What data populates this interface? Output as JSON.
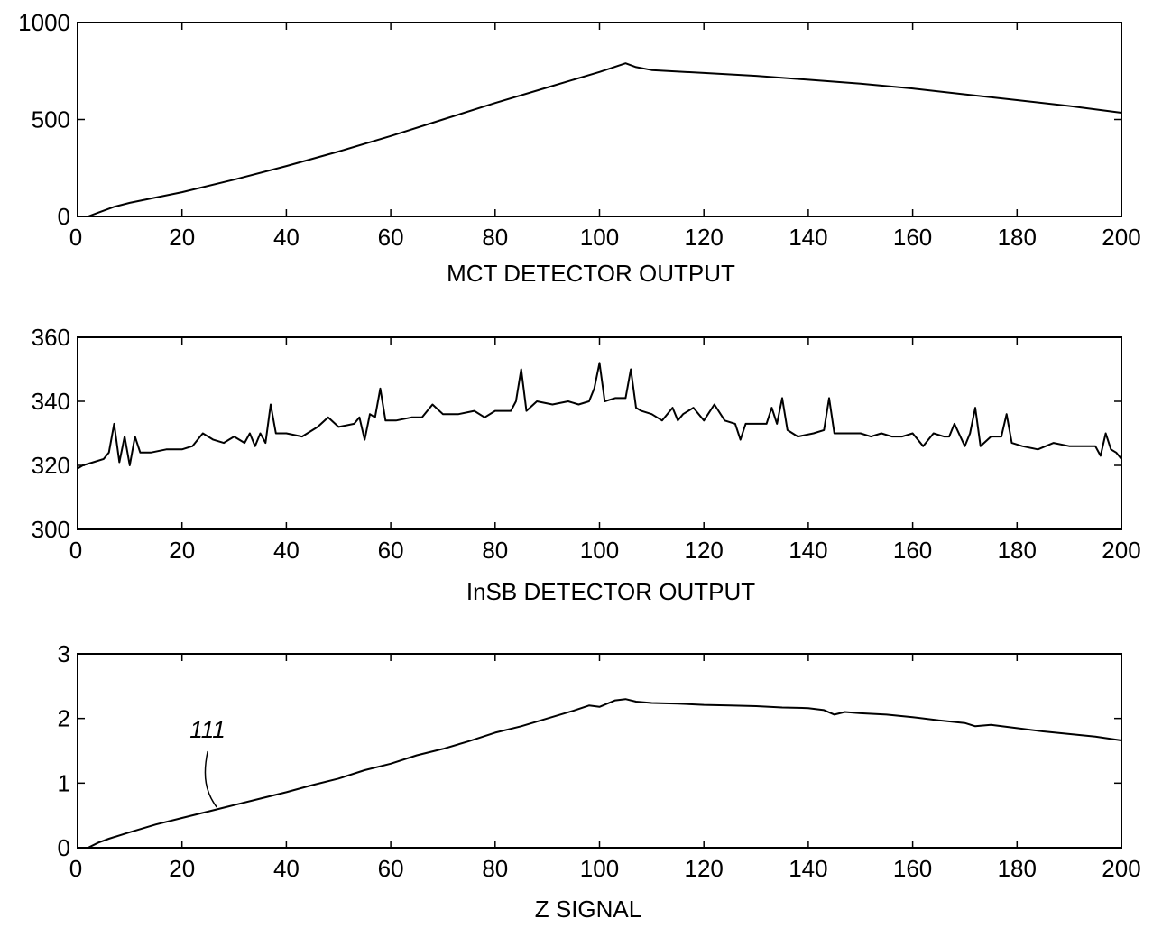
{
  "chart_data": [
    {
      "type": "line",
      "xlabel": "MCT DETECTOR OUTPUT",
      "xlim": [
        0,
        200
      ],
      "ylim": [
        0,
        1000
      ],
      "xticks": [
        0,
        20,
        40,
        60,
        80,
        100,
        120,
        140,
        160,
        180,
        200
      ],
      "yticks": [
        0,
        500,
        1000
      ],
      "grid": false,
      "series": [
        {
          "x": [
            2,
            4,
            7,
            10,
            20,
            30,
            40,
            50,
            60,
            70,
            80,
            90,
            100,
            105,
            107,
            110,
            120,
            130,
            140,
            150,
            160,
            170,
            180,
            190,
            200
          ],
          "y": [
            0,
            20,
            50,
            70,
            125,
            190,
            260,
            335,
            415,
            500,
            585,
            665,
            745,
            790,
            770,
            755,
            740,
            725,
            705,
            685,
            660,
            630,
            600,
            570,
            535
          ]
        }
      ]
    },
    {
      "type": "line",
      "xlabel": "InSB DETECTOR OUTPUT",
      "xlim": [
        0,
        200
      ],
      "ylim": [
        300,
        360
      ],
      "xticks": [
        0,
        20,
        40,
        60,
        80,
        100,
        120,
        140,
        160,
        180,
        200
      ],
      "yticks": [
        300,
        320,
        340,
        360
      ],
      "grid": false,
      "series": [
        {
          "x": [
            0,
            1,
            3,
            5,
            6,
            7,
            8,
            9,
            10,
            11,
            12,
            14,
            17,
            20,
            22,
            24,
            26,
            28,
            30,
            32,
            33,
            34,
            35,
            36,
            37,
            38,
            40,
            43,
            46,
            48,
            50,
            53,
            54,
            55,
            56,
            57,
            58,
            59,
            61,
            64,
            66,
            68,
            70,
            73,
            76,
            78,
            80,
            83,
            84,
            85,
            86,
            88,
            91,
            94,
            96,
            98,
            99,
            100,
            101,
            103,
            105,
            106,
            107,
            108,
            110,
            112,
            114,
            115,
            116,
            118,
            120,
            122,
            124,
            126,
            127,
            128,
            130,
            132,
            133,
            134,
            135,
            136,
            138,
            141,
            143,
            144,
            145,
            147,
            150,
            152,
            154,
            156,
            158,
            160,
            162,
            164,
            166,
            167,
            168,
            170,
            171,
            172,
            173,
            175,
            177,
            178,
            179,
            181,
            184,
            187,
            190,
            193,
            195,
            196,
            197,
            198,
            199,
            200
          ],
          "y": [
            319,
            320,
            321,
            322,
            324,
            333,
            321,
            329,
            320,
            329,
            324,
            324,
            325,
            325,
            326,
            330,
            328,
            327,
            329,
            327,
            330,
            326,
            330,
            327,
            339,
            330,
            330,
            329,
            332,
            335,
            332,
            333,
            335,
            328,
            336,
            335,
            344,
            334,
            334,
            335,
            335,
            339,
            336,
            336,
            337,
            335,
            337,
            337,
            340,
            350,
            337,
            340,
            339,
            340,
            339,
            340,
            344,
            352,
            340,
            341,
            341,
            350,
            338,
            337,
            336,
            334,
            338,
            334,
            336,
            338,
            334,
            339,
            334,
            333,
            328,
            333,
            333,
            333,
            338,
            333,
            341,
            331,
            329,
            330,
            331,
            341,
            330,
            330,
            330,
            329,
            330,
            329,
            329,
            330,
            326,
            330,
            329,
            329,
            333,
            326,
            330,
            338,
            326,
            329,
            329,
            336,
            327,
            326,
            325,
            327,
            326,
            326,
            326,
            323,
            330,
            325,
            324,
            322
          ]
        }
      ]
    },
    {
      "type": "line",
      "xlabel": "Z SIGNAL",
      "xlim": [
        0,
        200
      ],
      "ylim": [
        0,
        3
      ],
      "xticks": [
        0,
        20,
        40,
        60,
        80,
        100,
        120,
        140,
        160,
        180,
        200
      ],
      "yticks": [
        0,
        1,
        2,
        3
      ],
      "grid": false,
      "annotation": {
        "text": "111",
        "points_to": [
          27,
          0.6
        ]
      },
      "series": [
        {
          "x": [
            2,
            4,
            6,
            10,
            15,
            20,
            25,
            30,
            35,
            40,
            45,
            50,
            55,
            60,
            65,
            70,
            75,
            80,
            85,
            90,
            95,
            98,
            100,
            103,
            105,
            107,
            110,
            115,
            120,
            125,
            130,
            135,
            140,
            143,
            145,
            147,
            150,
            155,
            160,
            165,
            170,
            172,
            175,
            180,
            185,
            190,
            195,
            200
          ],
          "y": [
            0,
            0.08,
            0.14,
            0.24,
            0.36,
            0.46,
            0.56,
            0.66,
            0.76,
            0.86,
            0.97,
            1.07,
            1.2,
            1.3,
            1.43,
            1.53,
            1.65,
            1.78,
            1.88,
            2.0,
            2.12,
            2.2,
            2.18,
            2.28,
            2.3,
            2.26,
            2.24,
            2.23,
            2.21,
            2.2,
            2.19,
            2.17,
            2.16,
            2.13,
            2.06,
            2.1,
            2.08,
            2.06,
            2.02,
            1.97,
            1.93,
            1.88,
            1.9,
            1.85,
            1.8,
            1.76,
            1.72,
            1.66
          ]
        }
      ]
    }
  ]
}
